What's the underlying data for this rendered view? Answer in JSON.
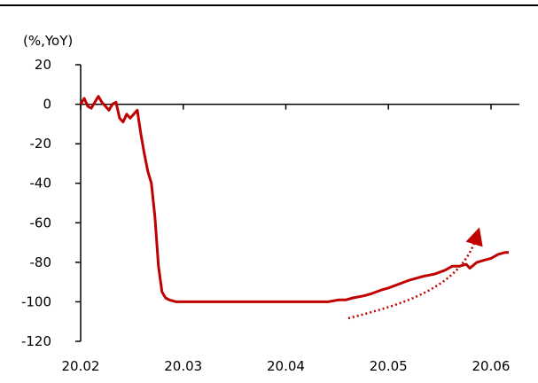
{
  "chart_data": {
    "type": "line",
    "title": "",
    "unit_label": "(%,YoY)",
    "xlabel": "",
    "ylabel": "",
    "ylim": [
      -120,
      20
    ],
    "y_ticks": [
      20,
      0,
      -20,
      -40,
      -60,
      -80,
      -100,
      -120
    ],
    "x_ticks": [
      "20.02",
      "20.03",
      "20.04",
      "20.05",
      "20.06"
    ],
    "grid": false,
    "line_color": "#c00000",
    "annotation": {
      "type": "dotted-arrow",
      "direction": "up-right",
      "color": "#c00000"
    },
    "series": [
      {
        "x": [
          0,
          1,
          2,
          3,
          4,
          5,
          6,
          7,
          8,
          9,
          10,
          11,
          12,
          13,
          14,
          15,
          16,
          17,
          18,
          19,
          20,
          21,
          22,
          23,
          24,
          25,
          26,
          27,
          28,
          29,
          30,
          31,
          32,
          33,
          35,
          40,
          50,
          60,
          70,
          73,
          75,
          77,
          80,
          82,
          85,
          87,
          90,
          93,
          95,
          97,
          100,
          103,
          105,
          107,
          109,
          110,
          112,
          114,
          116,
          118,
          120,
          121
        ],
        "values": [
          0,
          3,
          -1,
          -2,
          1,
          4,
          1,
          -1,
          -3,
          0,
          1,
          -7,
          -9,
          -5,
          -7,
          -5,
          -3,
          -15,
          -25,
          -34,
          -40,
          -57,
          -82,
          -95,
          -98,
          -99,
          -99.5,
          -100,
          -100,
          -100,
          -100,
          -100,
          -100,
          -100,
          -100,
          -100,
          -100,
          -100,
          -100,
          -99,
          -99,
          -98,
          -97,
          -96,
          -94,
          -93,
          -91,
          -89,
          -88,
          -87,
          -86,
          -84,
          -82,
          -82,
          -81,
          -83,
          -80,
          -79,
          -78,
          -76,
          -75,
          -75
        ]
      }
    ]
  }
}
